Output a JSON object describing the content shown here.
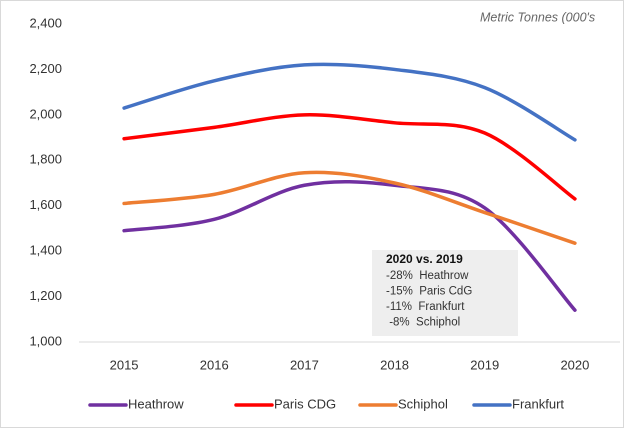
{
  "chart_data": {
    "type": "line",
    "y_axis_unit": "Metric Tonnes (000's",
    "categories": [
      "2015",
      "2016",
      "2017",
      "2018",
      "2019",
      "2020"
    ],
    "series": [
      {
        "name": "Heathrow",
        "color": "#7030a0",
        "values": [
          1490,
          1540,
          1690,
          1690,
          1590,
          1140
        ]
      },
      {
        "name": "Paris CDG",
        "color": "#ff0000",
        "values": [
          1895,
          1945,
          2000,
          1965,
          1920,
          1630
        ]
      },
      {
        "name": "Schiphol",
        "color": "#ed7d31",
        "values": [
          1610,
          1650,
          1745,
          1700,
          1570,
          1435
        ]
      },
      {
        "name": "Frankfurt",
        "color": "#4472c4",
        "values": [
          2030,
          2150,
          2220,
          2200,
          2120,
          1890
        ]
      }
    ],
    "ylim": [
      1000,
      2400
    ],
    "yticks": [
      {
        "value": 1000,
        "label": "1,000"
      },
      {
        "value": 1200,
        "label": "1,200"
      },
      {
        "value": 1400,
        "label": "1,400"
      },
      {
        "value": 1600,
        "label": "1,600"
      },
      {
        "value": 1800,
        "label": "1,800"
      },
      {
        "value": 2000,
        "label": "2,000"
      },
      {
        "value": 2200,
        "label": "2,200"
      },
      {
        "value": 2400,
        "label": "2,400"
      }
    ],
    "grid": false,
    "legend": "bottom",
    "annotation": {
      "title": "2020 vs. 2019",
      "lines": [
        "-28%  Heathrow",
        "-15%  Paris CdG",
        "-11%  Frankfurt",
        " -8%  Schiphol"
      ]
    }
  }
}
